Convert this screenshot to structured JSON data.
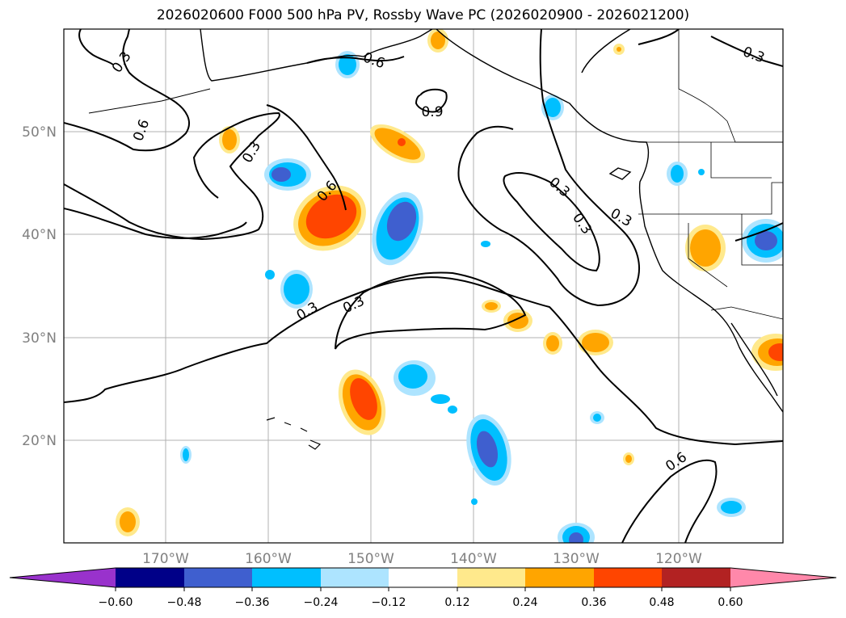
{
  "title": "2026020600 F000 500 hPa PV, Rossby Wave PC (2026020900 - 2026021200)",
  "map": {
    "lon_labels": [
      "170°W",
      "160°W",
      "150°W",
      "140°W",
      "130°W",
      "120°W"
    ],
    "lat_labels": [
      "50°N",
      "40°N",
      "30°N",
      "20°N"
    ],
    "contour_labels": [
      "0.3",
      "0.6",
      "0.3",
      "0.3",
      "0.6",
      "0.3",
      "0.6",
      "0.9",
      "0.3",
      "0.3",
      "0.3",
      "0.6",
      "0.3"
    ],
    "colors": {
      "pink": "#ff88aa",
      "firebrick": "#b22222",
      "orangered": "#ff4500",
      "orange": "#ffa500",
      "lightyellow": "#ffe98c",
      "white": "#ffffff",
      "lightblue": "#ade4ff",
      "deepskyblue": "#00bfff",
      "royalblue": "#3f5fcf",
      "navy": "#000088",
      "purple": "#9932cc"
    }
  },
  "colorbar": {
    "ticks": [
      "−0.60",
      "−0.48",
      "−0.36",
      "−0.24",
      "−0.12",
      "0.12",
      "0.24",
      "0.36",
      "0.48",
      "0.60"
    ],
    "colors": [
      "#9932cc",
      "#000088",
      "#3f5fcf",
      "#00bfff",
      "#ade4ff",
      "#ffffff",
      "#ffe98c",
      "#ffa500",
      "#ff4500",
      "#b22222",
      "#ff88aa"
    ]
  }
}
